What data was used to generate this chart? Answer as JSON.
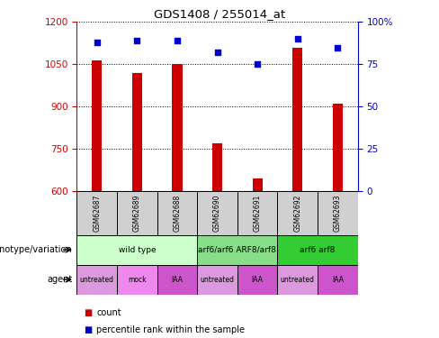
{
  "title": "GDS1408 / 255014_at",
  "samples": [
    "GSM62687",
    "GSM62689",
    "GSM62688",
    "GSM62690",
    "GSM62691",
    "GSM62692",
    "GSM62693"
  ],
  "bar_values": [
    1063,
    1020,
    1050,
    770,
    645,
    1110,
    910
  ],
  "scatter_values": [
    88,
    89,
    89,
    82,
    75,
    90,
    85
  ],
  "ylim_left": [
    600,
    1200
  ],
  "ylim_right": [
    0,
    100
  ],
  "yticks_left": [
    600,
    750,
    900,
    1050,
    1200
  ],
  "yticks_right": [
    0,
    25,
    50,
    75,
    100
  ],
  "bar_color": "#cc0000",
  "scatter_color": "#0000cc",
  "bar_width": 0.25,
  "genotype_groups": [
    {
      "label": "wild type",
      "span": [
        0,
        3
      ],
      "color": "#ccffcc"
    },
    {
      "label": "arf6/arf6 ARF8/arf8",
      "span": [
        3,
        5
      ],
      "color": "#88dd88"
    },
    {
      "label": "arf6 arf8",
      "span": [
        5,
        7
      ],
      "color": "#33cc33"
    }
  ],
  "agent_groups": [
    {
      "label": "untreated",
      "span": [
        0,
        1
      ],
      "color": "#dd99dd"
    },
    {
      "label": "mock",
      "span": [
        1,
        2
      ],
      "color": "#ee88ee"
    },
    {
      "label": "IAA",
      "span": [
        2,
        3
      ],
      "color": "#cc55cc"
    },
    {
      "label": "untreated",
      "span": [
        3,
        4
      ],
      "color": "#dd99dd"
    },
    {
      "label": "IAA",
      "span": [
        4,
        5
      ],
      "color": "#cc55cc"
    },
    {
      "label": "untreated",
      "span": [
        5,
        6
      ],
      "color": "#dd99dd"
    },
    {
      "label": "IAA",
      "span": [
        6,
        7
      ],
      "color": "#cc55cc"
    }
  ],
  "legend_count_color": "#cc0000",
  "legend_scatter_color": "#0000cc",
  "axis_left_color": "#cc0000",
  "axis_right_color": "#0000cc"
}
